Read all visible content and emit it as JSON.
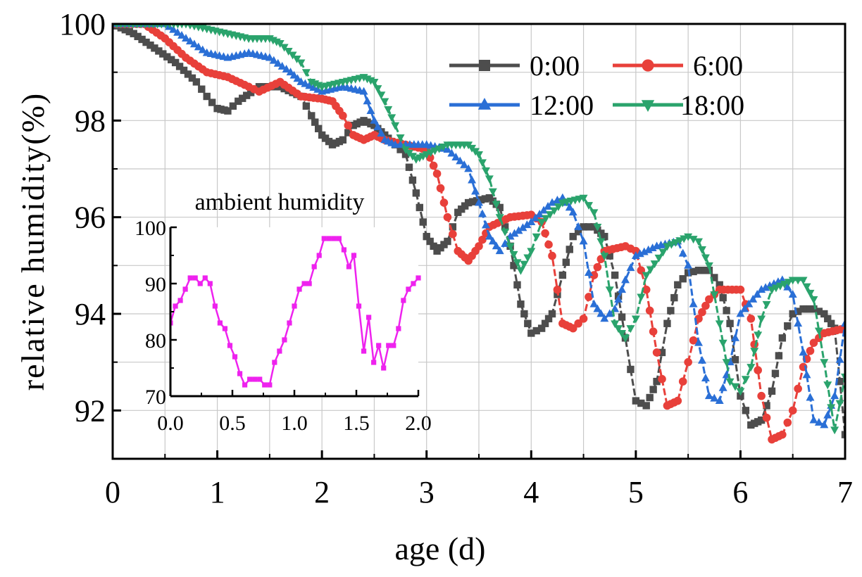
{
  "chart_data": [
    {
      "type": "line",
      "xlabel": "age (d)",
      "ylabel": "relative humidity(%)",
      "xlim": [
        0,
        7
      ],
      "ylim": [
        91,
        100
      ],
      "xticks": [
        "0",
        "1",
        "2",
        "3",
        "4",
        "5",
        "6",
        "7"
      ],
      "yticks": [
        "92",
        "94",
        "96",
        "98",
        "100"
      ],
      "grid": true,
      "legend_position": "top-right",
      "series": [
        {
          "name": "0:00",
          "color": "#4d4d4d",
          "marker": "square",
          "points": [
            [
              0,
              100
            ],
            [
              0.2,
              99.8
            ],
            [
              0.4,
              99.5
            ],
            [
              0.6,
              99.2
            ],
            [
              0.8,
              98.8
            ],
            [
              0.9,
              98.5
            ],
            [
              1.0,
              98.25
            ],
            [
              1.1,
              98.2
            ],
            [
              1.2,
              98.4
            ],
            [
              1.4,
              98.7
            ],
            [
              1.6,
              98.7
            ],
            [
              1.8,
              98.5
            ],
            [
              1.9,
              98.1
            ],
            [
              2.0,
              97.7
            ],
            [
              2.1,
              97.5
            ],
            [
              2.2,
              97.6
            ],
            [
              2.3,
              97.9
            ],
            [
              2.4,
              98.0
            ],
            [
              2.5,
              97.9
            ],
            [
              2.6,
              97.7
            ],
            [
              2.7,
              97.5
            ],
            [
              2.8,
              97.3
            ],
            [
              2.9,
              96.5
            ],
            [
              3.0,
              95.6
            ],
            [
              3.1,
              95.3
            ],
            [
              3.2,
              95.5
            ],
            [
              3.3,
              96.1
            ],
            [
              3.4,
              96.3
            ],
            [
              3.6,
              96.4
            ],
            [
              3.7,
              96.2
            ],
            [
              3.8,
              95.4
            ],
            [
              3.9,
              94.2
            ],
            [
              4.0,
              93.6
            ],
            [
              4.1,
              93.7
            ],
            [
              4.2,
              94.0
            ],
            [
              4.3,
              94.8
            ],
            [
              4.4,
              95.6
            ],
            [
              4.5,
              95.8
            ],
            [
              4.6,
              95.8
            ],
            [
              4.7,
              95.6
            ],
            [
              4.8,
              94.8
            ],
            [
              4.9,
              93.5
            ],
            [
              5.0,
              92.2
            ],
            [
              5.1,
              92.1
            ],
            [
              5.2,
              92.6
            ],
            [
              5.3,
              93.8
            ],
            [
              5.4,
              94.6
            ],
            [
              5.5,
              94.85
            ],
            [
              5.6,
              94.9
            ],
            [
              5.7,
              94.9
            ],
            [
              5.8,
              94.6
            ],
            [
              5.9,
              93.8
            ],
            [
              6.0,
              92.3
            ],
            [
              6.1,
              91.7
            ],
            [
              6.2,
              91.8
            ],
            [
              6.3,
              92.4
            ],
            [
              6.4,
              93.5
            ],
            [
              6.5,
              94.0
            ],
            [
              6.6,
              94.1
            ],
            [
              6.7,
              94.1
            ],
            [
              6.8,
              94.0
            ],
            [
              6.9,
              93.7
            ],
            [
              7.0,
              91.5
            ]
          ]
        },
        {
          "name": "6:00",
          "color": "#e8403a",
          "marker": "circle",
          "points": [
            [
              0,
              100
            ],
            [
              0.3,
              100
            ],
            [
              0.5,
              99.7
            ],
            [
              0.7,
              99.3
            ],
            [
              0.9,
              99.0
            ],
            [
              1.1,
              98.9
            ],
            [
              1.3,
              98.7
            ],
            [
              1.4,
              98.6
            ],
            [
              1.6,
              98.8
            ],
            [
              1.8,
              98.5
            ],
            [
              2.0,
              98.45
            ],
            [
              2.1,
              98.4
            ],
            [
              2.2,
              98.1
            ],
            [
              2.3,
              97.7
            ],
            [
              2.4,
              97.6
            ],
            [
              2.5,
              97.7
            ],
            [
              2.6,
              97.6
            ],
            [
              2.8,
              97.5
            ],
            [
              3.0,
              97.4
            ],
            [
              3.1,
              96.9
            ],
            [
              3.2,
              96.0
            ],
            [
              3.3,
              95.3
            ],
            [
              3.4,
              95.1
            ],
            [
              3.5,
              95.4
            ],
            [
              3.6,
              95.8
            ],
            [
              3.8,
              96.0
            ],
            [
              4.0,
              96.05
            ],
            [
              4.1,
              95.9
            ],
            [
              4.2,
              95.2
            ],
            [
              4.3,
              93.8
            ],
            [
              4.4,
              93.7
            ],
            [
              4.5,
              93.9
            ],
            [
              4.6,
              94.8
            ],
            [
              4.7,
              95.3
            ],
            [
              4.9,
              95.4
            ],
            [
              5.0,
              95.3
            ],
            [
              5.1,
              94.5
            ],
            [
              5.2,
              93.2
            ],
            [
              5.3,
              92.1
            ],
            [
              5.4,
              92.2
            ],
            [
              5.5,
              93.0
            ],
            [
              5.6,
              93.9
            ],
            [
              5.7,
              94.3
            ],
            [
              5.8,
              94.5
            ],
            [
              6.0,
              94.5
            ],
            [
              6.1,
              93.9
            ],
            [
              6.2,
              92.3
            ],
            [
              6.3,
              91.4
            ],
            [
              6.4,
              91.5
            ],
            [
              6.5,
              92.0
            ],
            [
              6.6,
              92.9
            ],
            [
              6.7,
              93.4
            ],
            [
              6.8,
              93.6
            ],
            [
              7.0,
              93.7
            ]
          ]
        },
        {
          "name": "12:00",
          "color": "#2a6fd6",
          "marker": "triangle-up",
          "points": [
            [
              0,
              100
            ],
            [
              0.5,
              100
            ],
            [
              0.7,
              99.7
            ],
            [
              0.9,
              99.4
            ],
            [
              1.1,
              99.3
            ],
            [
              1.3,
              99.4
            ],
            [
              1.5,
              99.3
            ],
            [
              1.7,
              99.0
            ],
            [
              1.8,
              98.8
            ],
            [
              2.0,
              98.6
            ],
            [
              2.2,
              98.7
            ],
            [
              2.4,
              98.6
            ],
            [
              2.5,
              98.0
            ],
            [
              2.6,
              97.6
            ],
            [
              2.7,
              97.5
            ],
            [
              2.8,
              97.5
            ],
            [
              3.0,
              97.5
            ],
            [
              3.2,
              97.4
            ],
            [
              3.4,
              97.0
            ],
            [
              3.5,
              96.3
            ],
            [
              3.6,
              95.6
            ],
            [
              3.7,
              95.3
            ],
            [
              3.8,
              95.6
            ],
            [
              4.0,
              95.9
            ],
            [
              4.2,
              96.3
            ],
            [
              4.3,
              96.4
            ],
            [
              4.4,
              96.1
            ],
            [
              4.5,
              95.5
            ],
            [
              4.6,
              94.2
            ],
            [
              4.7,
              93.9
            ],
            [
              4.8,
              94.1
            ],
            [
              4.9,
              94.7
            ],
            [
              5.0,
              95.2
            ],
            [
              5.2,
              95.4
            ],
            [
              5.4,
              95.5
            ],
            [
              5.5,
              95.0
            ],
            [
              5.6,
              93.4
            ],
            [
              5.7,
              92.3
            ],
            [
              5.8,
              92.2
            ],
            [
              5.9,
              93.0
            ],
            [
              6.0,
              94.0
            ],
            [
              6.2,
              94.5
            ],
            [
              6.4,
              94.7
            ],
            [
              6.5,
              94.4
            ],
            [
              6.6,
              93.2
            ],
            [
              6.7,
              91.8
            ],
            [
              6.8,
              91.7
            ],
            [
              6.9,
              92.3
            ],
            [
              7.0,
              93.8
            ]
          ]
        },
        {
          "name": "18:00",
          "color": "#2aa36c",
          "marker": "triangle-down",
          "points": [
            [
              0,
              100
            ],
            [
              0.7,
              100
            ],
            [
              0.9,
              99.9
            ],
            [
              1.1,
              99.8
            ],
            [
              1.3,
              99.7
            ],
            [
              1.5,
              99.7
            ],
            [
              1.6,
              99.6
            ],
            [
              1.8,
              99.2
            ],
            [
              1.9,
              98.8
            ],
            [
              2.0,
              98.7
            ],
            [
              2.2,
              98.8
            ],
            [
              2.4,
              98.9
            ],
            [
              2.5,
              98.8
            ],
            [
              2.6,
              98.4
            ],
            [
              2.7,
              97.9
            ],
            [
              2.8,
              97.4
            ],
            [
              2.9,
              97.2
            ],
            [
              3.0,
              97.3
            ],
            [
              3.2,
              97.5
            ],
            [
              3.4,
              97.5
            ],
            [
              3.5,
              97.3
            ],
            [
              3.6,
              96.8
            ],
            [
              3.7,
              96.0
            ],
            [
              3.8,
              95.4
            ],
            [
              3.9,
              94.9
            ],
            [
              4.0,
              95.3
            ],
            [
              4.1,
              95.9
            ],
            [
              4.3,
              96.3
            ],
            [
              4.5,
              96.4
            ],
            [
              4.6,
              96.1
            ],
            [
              4.7,
              95.2
            ],
            [
              4.8,
              93.8
            ],
            [
              4.9,
              93.5
            ],
            [
              5.0,
              93.9
            ],
            [
              5.1,
              94.8
            ],
            [
              5.3,
              95.4
            ],
            [
              5.5,
              95.6
            ],
            [
              5.6,
              95.5
            ],
            [
              5.7,
              95.0
            ],
            [
              5.8,
              93.8
            ],
            [
              5.9,
              92.6
            ],
            [
              6.0,
              92.4
            ],
            [
              6.1,
              92.9
            ],
            [
              6.2,
              93.9
            ],
            [
              6.3,
              94.5
            ],
            [
              6.5,
              94.7
            ],
            [
              6.6,
              94.7
            ],
            [
              6.7,
              94.3
            ],
            [
              6.8,
              93.0
            ],
            [
              6.9,
              91.6
            ],
            [
              7.0,
              92.7
            ]
          ]
        }
      ]
    },
    {
      "type": "line",
      "title": "ambient humidity",
      "xlim": [
        0,
        2
      ],
      "ylim": [
        70,
        100
      ],
      "xticks": [
        "0.0",
        "0.5",
        "1.0",
        "1.5",
        "2.0"
      ],
      "yticks": [
        "70",
        "80",
        "90",
        "100"
      ],
      "series": [
        {
          "name": "ambient humidity",
          "color": "#ee22ee",
          "marker": "square",
          "points": [
            [
              0.0,
              83
            ],
            [
              0.04,
              86
            ],
            [
              0.08,
              87
            ],
            [
              0.12,
              89
            ],
            [
              0.16,
              91
            ],
            [
              0.2,
              91
            ],
            [
              0.24,
              90
            ],
            [
              0.28,
              91
            ],
            [
              0.32,
              90
            ],
            [
              0.36,
              86
            ],
            [
              0.4,
              83
            ],
            [
              0.44,
              82
            ],
            [
              0.48,
              79
            ],
            [
              0.52,
              77
            ],
            [
              0.56,
              74
            ],
            [
              0.6,
              72
            ],
            [
              0.64,
              73
            ],
            [
              0.68,
              73
            ],
            [
              0.72,
              73
            ],
            [
              0.76,
              72
            ],
            [
              0.8,
              72
            ],
            [
              0.84,
              76
            ],
            [
              0.88,
              78
            ],
            [
              0.92,
              80
            ],
            [
              0.96,
              83
            ],
            [
              1.0,
              86
            ],
            [
              1.04,
              89
            ],
            [
              1.08,
              90
            ],
            [
              1.12,
              90
            ],
            [
              1.16,
              93
            ],
            [
              1.2,
              95
            ],
            [
              1.24,
              98
            ],
            [
              1.28,
              98
            ],
            [
              1.32,
              98
            ],
            [
              1.36,
              98
            ],
            [
              1.4,
              96
            ],
            [
              1.44,
              93
            ],
            [
              1.48,
              95
            ],
            [
              1.52,
              86
            ],
            [
              1.56,
              78
            ],
            [
              1.6,
              84
            ],
            [
              1.64,
              76
            ],
            [
              1.68,
              79
            ],
            [
              1.72,
              75
            ],
            [
              1.76,
              79
            ],
            [
              1.8,
              79
            ],
            [
              1.84,
              82
            ],
            [
              1.88,
              87
            ],
            [
              1.92,
              89
            ],
            [
              1.96,
              90
            ],
            [
              2.0,
              91
            ]
          ]
        }
      ]
    }
  ]
}
